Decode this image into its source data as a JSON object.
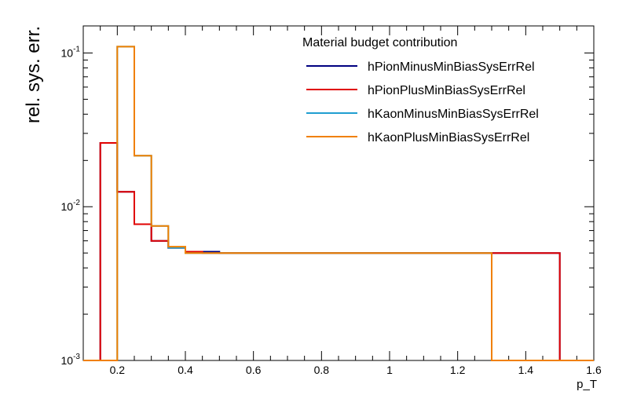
{
  "chart_data": {
    "type": "line",
    "subtype": "step-histogram",
    "ylabel": "rel. sys. err.",
    "xlabel": "p_T",
    "yscale": "log",
    "xlim": [
      0.1,
      1.6
    ],
    "ylim": [
      0.001,
      0.15
    ],
    "grid": false,
    "legend": {
      "title": "Material budget contribution",
      "placement": "top-right"
    },
    "bin_edges": [
      0.1,
      0.15,
      0.2,
      0.25,
      0.3,
      0.35,
      0.4,
      0.45,
      0.5,
      0.55,
      0.6,
      0.65,
      0.7,
      0.75,
      0.8,
      0.85,
      0.9,
      0.95,
      1.0,
      1.05,
      1.1,
      1.15,
      1.2,
      1.25,
      1.3,
      1.35,
      1.4,
      1.45,
      1.5,
      1.55,
      1.6
    ],
    "x_ticks": [
      {
        "value": 0.2,
        "label": "0.2"
      },
      {
        "value": 0.4,
        "label": "0.4"
      },
      {
        "value": 0.6,
        "label": "0.6"
      },
      {
        "value": 0.8,
        "label": "0.8"
      },
      {
        "value": 1.0,
        "label": "1"
      },
      {
        "value": 1.2,
        "label": "1.2"
      },
      {
        "value": 1.4,
        "label": "1.4"
      },
      {
        "value": 1.6,
        "label": "1.6"
      }
    ],
    "y_ticks": [
      {
        "value": 0.001,
        "base": "10",
        "exp": "-3"
      },
      {
        "value": 0.01,
        "base": "10",
        "exp": "-2"
      },
      {
        "value": 0.1,
        "base": "10",
        "exp": "-1"
      }
    ],
    "series": [
      {
        "name": "hPionMinusMinBiasSysErrRel",
        "color": "#000080",
        "values": [
          0.001,
          0.026,
          0.0125,
          0.0077,
          0.006,
          0.0054,
          0.0051,
          0.0051,
          0.005,
          0.005,
          0.005,
          0.005,
          0.005,
          0.005,
          0.005,
          0.005,
          0.005,
          0.005,
          0.005,
          0.005,
          0.005,
          0.005,
          0.005,
          0.005,
          0.005,
          0.005,
          0.005,
          0.005,
          0.001,
          0.001
        ]
      },
      {
        "name": "hPionPlusMinBiasSysErrRel",
        "color": "#e00000",
        "values": [
          0.001,
          0.026,
          0.0125,
          0.0077,
          0.006,
          0.0054,
          0.0051,
          0.005,
          0.005,
          0.005,
          0.005,
          0.005,
          0.005,
          0.005,
          0.005,
          0.005,
          0.005,
          0.005,
          0.005,
          0.005,
          0.005,
          0.005,
          0.005,
          0.005,
          0.005,
          0.005,
          0.005,
          0.005,
          0.001,
          0.001
        ]
      },
      {
        "name": "hKaonMinusMinBiasSysErrRel",
        "color": "#1f9ed0",
        "values": [
          0.001,
          0.001,
          0.11,
          0.0215,
          0.0075,
          0.0054,
          0.005,
          0.005,
          0.005,
          0.005,
          0.005,
          0.005,
          0.005,
          0.005,
          0.005,
          0.005,
          0.005,
          0.005,
          0.005,
          0.005,
          0.005,
          0.005,
          0.005,
          0.005,
          0.001,
          0.001,
          0.001,
          0.001,
          0.001,
          0.001
        ]
      },
      {
        "name": "hKaonPlusMinBiasSysErrRel",
        "color": "#f08000",
        "values": [
          0.001,
          0.001,
          0.11,
          0.0215,
          0.0075,
          0.0055,
          0.005,
          0.005,
          0.005,
          0.005,
          0.005,
          0.005,
          0.005,
          0.005,
          0.005,
          0.005,
          0.005,
          0.005,
          0.005,
          0.005,
          0.005,
          0.005,
          0.005,
          0.005,
          0.001,
          0.001,
          0.001,
          0.001,
          0.001,
          0.001
        ]
      }
    ]
  }
}
